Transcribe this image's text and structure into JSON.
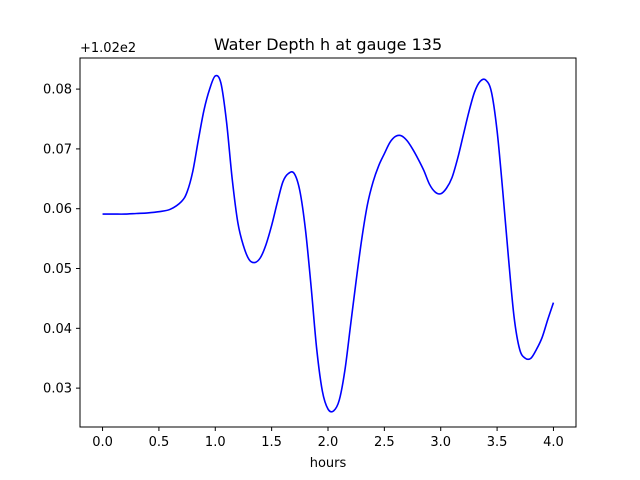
{
  "chart_data": {
    "type": "line",
    "title": "Water Depth h at gauge 135",
    "xlabel": "hours",
    "ylabel": "",
    "offset_text": "+1.02e2",
    "xlim": [
      -0.2,
      4.2
    ],
    "ylim": [
      0.0235,
      0.0852
    ],
    "x_ticks": [
      0.0,
      0.5,
      1.0,
      1.5,
      2.0,
      2.5,
      3.0,
      3.5,
      4.0
    ],
    "x_tick_labels": [
      "0.0",
      "0.5",
      "1.0",
      "1.5",
      "2.0",
      "2.5",
      "3.0",
      "3.5",
      "4.0"
    ],
    "y_ticks": [
      0.03,
      0.04,
      0.05,
      0.06,
      0.07,
      0.08
    ],
    "y_tick_labels": [
      "0.03",
      "0.04",
      "0.05",
      "0.06",
      "0.07",
      "0.08"
    ],
    "grid": false,
    "series": [
      {
        "color": "#0000ff",
        "x": [
          0.0,
          0.1,
          0.2,
          0.3,
          0.4,
          0.5,
          0.6,
          0.7,
          0.75,
          0.8,
          0.85,
          0.9,
          0.95,
          1.0,
          1.05,
          1.1,
          1.15,
          1.2,
          1.25,
          1.3,
          1.35,
          1.4,
          1.45,
          1.5,
          1.55,
          1.6,
          1.65,
          1.7,
          1.75,
          1.8,
          1.85,
          1.9,
          1.95,
          2.0,
          2.05,
          2.1,
          2.15,
          2.2,
          2.25,
          2.3,
          2.35,
          2.4,
          2.45,
          2.5,
          2.55,
          2.6,
          2.65,
          2.7,
          2.75,
          2.8,
          2.85,
          2.9,
          2.95,
          3.0,
          3.05,
          3.1,
          3.15,
          3.2,
          3.25,
          3.3,
          3.35,
          3.4,
          3.45,
          3.5,
          3.55,
          3.6,
          3.65,
          3.7,
          3.75,
          3.8,
          3.85,
          3.9,
          3.95,
          4.0
        ],
        "y": [
          0.0591,
          0.0591,
          0.0591,
          0.0592,
          0.0593,
          0.0595,
          0.0599,
          0.0612,
          0.0628,
          0.0662,
          0.0715,
          0.0765,
          0.08,
          0.0822,
          0.081,
          0.0745,
          0.065,
          0.0577,
          0.0538,
          0.0515,
          0.051,
          0.0518,
          0.054,
          0.0572,
          0.061,
          0.0645,
          0.0659,
          0.0659,
          0.063,
          0.0565,
          0.047,
          0.0365,
          0.0295,
          0.0265,
          0.0262,
          0.028,
          0.033,
          0.0405,
          0.048,
          0.055,
          0.0607,
          0.0645,
          0.0672,
          0.0692,
          0.0711,
          0.0721,
          0.0722,
          0.0714,
          0.07,
          0.0683,
          0.0664,
          0.0641,
          0.0628,
          0.0625,
          0.0634,
          0.0652,
          0.0684,
          0.0723,
          0.0762,
          0.0795,
          0.0813,
          0.0815,
          0.0795,
          0.073,
          0.063,
          0.052,
          0.042,
          0.0365,
          0.035,
          0.035,
          0.0365,
          0.0385,
          0.0415,
          0.0443
        ]
      }
    ]
  }
}
